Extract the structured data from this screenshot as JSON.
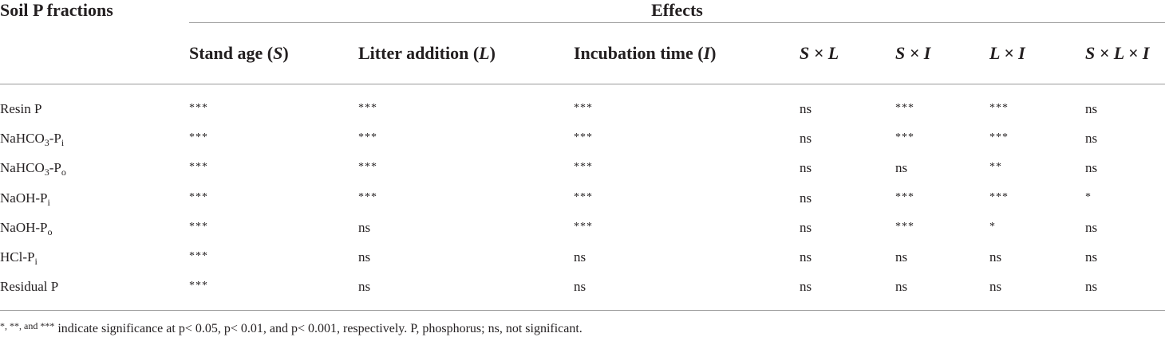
{
  "table": {
    "stub_header": "Soil P fractions",
    "group_header": "Effects",
    "columns": [
      {
        "text": "Stand age (",
        "var": "S",
        "tail": ")"
      },
      {
        "text": "Litter addition (",
        "var": "L",
        "tail": ")"
      },
      {
        "text": "Incubation time (",
        "var": "I",
        "tail": ")"
      },
      {
        "text": "",
        "var": "S × L",
        "tail": ""
      },
      {
        "text": "",
        "var": "S × I",
        "tail": ""
      },
      {
        "text": "",
        "var": "L × I",
        "tail": ""
      },
      {
        "text": "",
        "var": "S × L × I",
        "tail": ""
      }
    ],
    "rows": [
      {
        "name": "Resin P",
        "base": "Resin P",
        "subscript": "",
        "values": [
          "***",
          "***",
          "***",
          "ns",
          "***",
          "***",
          "ns"
        ]
      },
      {
        "name": "NaHCO3-Pi",
        "base": "NaHCO",
        "mid": "3",
        "base2": "-P",
        "subscript": "i",
        "values": [
          "***",
          "***",
          "***",
          "ns",
          "***",
          "***",
          "ns"
        ]
      },
      {
        "name": "NaHCO3-Po",
        "base": "NaHCO",
        "mid": "3",
        "base2": "-P",
        "subscript": "o",
        "values": [
          "***",
          "***",
          "***",
          "ns",
          "ns",
          "**",
          "ns"
        ]
      },
      {
        "name": "NaOH-Pi",
        "base": "NaOH-P",
        "subscript": "i",
        "values": [
          "***",
          "***",
          "***",
          "ns",
          "***",
          "***",
          "*"
        ]
      },
      {
        "name": "NaOH-Po",
        "base": "NaOH-P",
        "subscript": "o",
        "values": [
          "***",
          "ns",
          "***",
          "ns",
          "***",
          "*",
          "ns"
        ]
      },
      {
        "name": "HCl-Pi",
        "base": "HCl-P",
        "subscript": "i",
        "values": [
          "***",
          "ns",
          "ns",
          "ns",
          "ns",
          "ns",
          "ns"
        ]
      },
      {
        "name": "Residual P",
        "base": "Residual P",
        "subscript": "",
        "values": [
          "***",
          "ns",
          "ns",
          "ns",
          "ns",
          "ns",
          "ns"
        ]
      }
    ]
  },
  "footnote": {
    "symbols": "*, **, and ***",
    "text": " indicate significance at p< 0.05, p< 0.01, and p< 0.001, respectively. P, phosphorus; ns, not significant."
  }
}
